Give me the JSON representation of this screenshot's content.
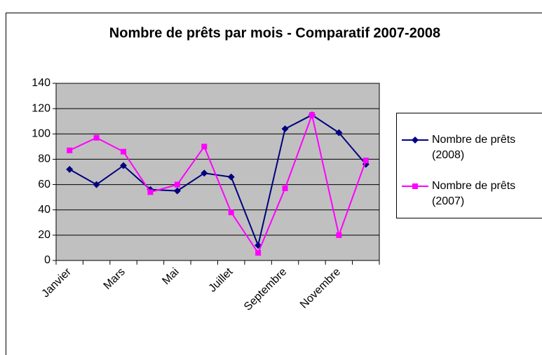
{
  "chart_data": {
    "type": "line",
    "title": "Nombre de prêts par mois - Comparatif 2007-2008",
    "categories": [
      "Janvier",
      null,
      "Mars",
      null,
      "Mai",
      null,
      "Juillet",
      null,
      "Septembre",
      null,
      "Novembre",
      null
    ],
    "series": [
      {
        "name": "Nombre de prêts (2008)",
        "color": "#000080",
        "marker": "diamond",
        "values": [
          72,
          60,
          75,
          56,
          55,
          69,
          66,
          12,
          104,
          115,
          101,
          76
        ]
      },
      {
        "name": "Nombre de prêts (2007)",
        "color": "#ff00ff",
        "marker": "square",
        "values": [
          87,
          97,
          86,
          54,
          60,
          90,
          38,
          6,
          57,
          115,
          20,
          79
        ]
      }
    ],
    "ylim": [
      0,
      140
    ],
    "yticks": [
      0,
      20,
      40,
      60,
      80,
      100,
      120,
      140
    ],
    "grid": true,
    "legend": "right"
  }
}
